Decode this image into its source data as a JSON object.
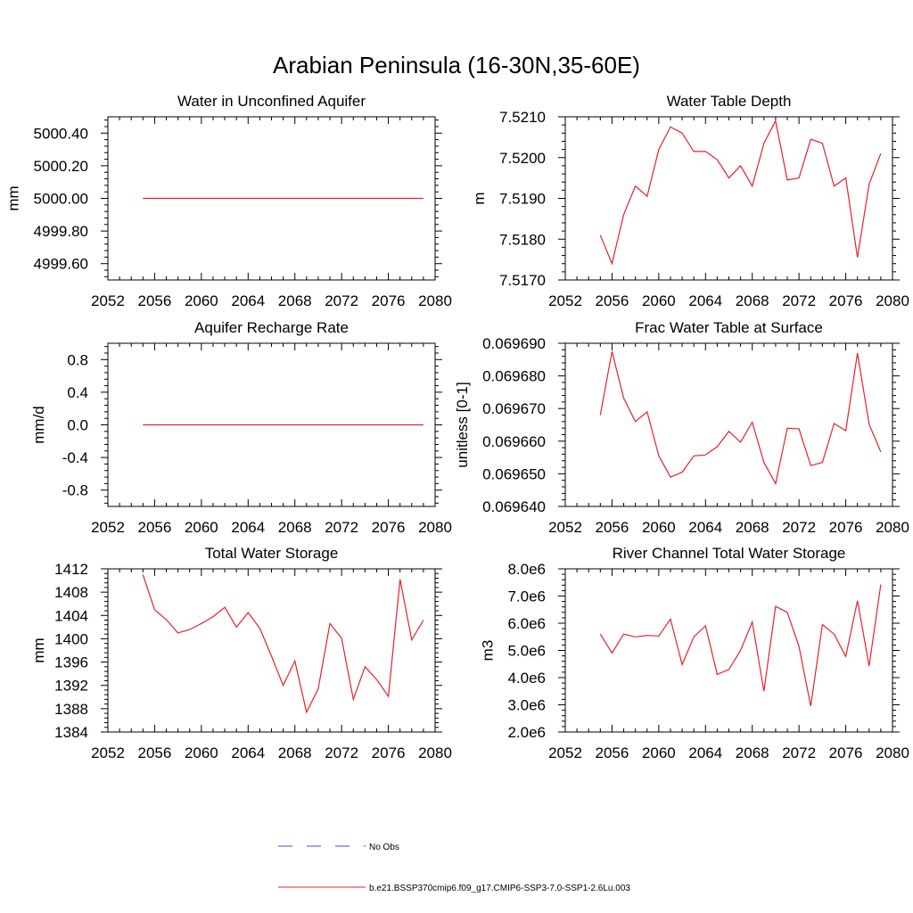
{
  "title": "Arabian Peninsula (16-30N,35-60E)",
  "colors": {
    "series": "#e8202a",
    "no_obs": "#4a4ac8",
    "axis": "#000000"
  },
  "legend": {
    "items": [
      {
        "label": "No Obs",
        "style": "dashed",
        "color": "#4a4ac8"
      },
      {
        "label": "b.e21.BSSP370cmip6.f09_g17.CMIP6-SSP3-7.0-SSP1-2.6Lu.003",
        "style": "solid",
        "color": "#e8202a"
      }
    ]
  },
  "chart_data": [
    {
      "type": "line",
      "title": "Water in Unconfined Aquifer",
      "ylabel": "mm",
      "xlim": [
        2052,
        2080
      ],
      "ylim": [
        4999.5,
        5000.5
      ],
      "xticks": [
        2052,
        2056,
        2060,
        2064,
        2068,
        2072,
        2076,
        2080
      ],
      "xtick_labels": [
        "2052",
        "2056",
        "2060",
        "2064",
        "2068",
        "2072",
        "2076",
        "2080"
      ],
      "yticks": [
        4999.6,
        4999.8,
        5000.0,
        5000.2,
        5000.4
      ],
      "ytick_labels": [
        "4999.60",
        "4999.80",
        "5000.00",
        "5000.20",
        "5000.40"
      ],
      "x": [
        2055,
        2079
      ],
      "y": [
        5000.0,
        5000.0
      ]
    },
    {
      "type": "line",
      "title": "Water Table Depth",
      "ylabel": "m",
      "xlim": [
        2052,
        2080
      ],
      "ylim": [
        7.517,
        7.521
      ],
      "xticks": [
        2052,
        2056,
        2060,
        2064,
        2068,
        2072,
        2076,
        2080
      ],
      "xtick_labels": [
        "2052",
        "2056",
        "2060",
        "2064",
        "2068",
        "2072",
        "2076",
        "2080"
      ],
      "yticks": [
        7.517,
        7.518,
        7.519,
        7.52,
        7.521
      ],
      "ytick_labels": [
        "7.5170",
        "7.5180",
        "7.5190",
        "7.5200",
        "7.5210"
      ],
      "x": [
        2055,
        2056,
        2057,
        2058,
        2059,
        2060,
        2061,
        2062,
        2063,
        2064,
        2065,
        2066,
        2067,
        2068,
        2069,
        2070,
        2071,
        2072,
        2073,
        2074,
        2075,
        2076,
        2077,
        2078,
        2079
      ],
      "y": [
        7.5181,
        7.5174,
        7.5186,
        7.5193,
        7.51905,
        7.5202,
        7.52075,
        7.5206,
        7.52015,
        7.52015,
        7.51995,
        7.5195,
        7.5198,
        7.5193,
        7.52035,
        7.5209,
        7.51945,
        7.5195,
        7.52045,
        7.52035,
        7.5193,
        7.5195,
        7.51755,
        7.51935,
        7.5201
      ]
    },
    {
      "type": "line",
      "title": "Aquifer Recharge Rate",
      "ylabel": "mm/d",
      "xlim": [
        2052,
        2080
      ],
      "ylim": [
        -1.0,
        1.0
      ],
      "xticks": [
        2052,
        2056,
        2060,
        2064,
        2068,
        2072,
        2076,
        2080
      ],
      "xtick_labels": [
        "2052",
        "2056",
        "2060",
        "2064",
        "2068",
        "2072",
        "2076",
        "2080"
      ],
      "yticks": [
        -0.8,
        -0.4,
        0.0,
        0.4,
        0.8
      ],
      "ytick_labels": [
        "-0.8",
        "-0.4",
        "0.0",
        "0.4",
        "0.8"
      ],
      "x": [
        2055,
        2079
      ],
      "y": [
        0.0,
        0.0
      ]
    },
    {
      "type": "line",
      "title": "Frac Water Table at Surface",
      "ylabel": "unitless [0-1]",
      "xlim": [
        2052,
        2080
      ],
      "ylim": [
        0.06964,
        0.06969
      ],
      "xticks": [
        2052,
        2056,
        2060,
        2064,
        2068,
        2072,
        2076,
        2080
      ],
      "xtick_labels": [
        "2052",
        "2056",
        "2060",
        "2064",
        "2068",
        "2072",
        "2076",
        "2080"
      ],
      "yticks": [
        0.06964,
        0.06965,
        0.06966,
        0.06967,
        0.06968,
        0.06969
      ],
      "ytick_labels": [
        "0.069640",
        "0.069650",
        "0.069660",
        "0.069670",
        "0.069680",
        "0.069690"
      ],
      "x": [
        2055,
        2056,
        2057,
        2058,
        2059,
        2060,
        2061,
        2062,
        2063,
        2064,
        2065,
        2066,
        2067,
        2068,
        2069,
        2070,
        2071,
        2072,
        2073,
        2074,
        2075,
        2076,
        2077,
        2078,
        2079
      ],
      "y": [
        0.069668,
        0.0696875,
        0.0696732,
        0.069666,
        0.069669,
        0.0696555,
        0.069649,
        0.0696505,
        0.0696555,
        0.0696558,
        0.0696583,
        0.069663,
        0.0696597,
        0.0696658,
        0.0696535,
        0.069647,
        0.069664,
        0.0696638,
        0.0696525,
        0.0696535,
        0.0696654,
        0.0696632,
        0.069687,
        0.0696652,
        0.0696567
      ]
    },
    {
      "type": "line",
      "title": "Total Water Storage",
      "ylabel": "mm",
      "xlim": [
        2052,
        2080
      ],
      "ylim": [
        1384,
        1412
      ],
      "xticks": [
        2052,
        2056,
        2060,
        2064,
        2068,
        2072,
        2076,
        2080
      ],
      "xtick_labels": [
        "2052",
        "2056",
        "2060",
        "2064",
        "2068",
        "2072",
        "2076",
        "2080"
      ],
      "yticks": [
        1384,
        1388,
        1392,
        1396,
        1400,
        1404,
        1408,
        1412
      ],
      "ytick_labels": [
        "1384",
        "1388",
        "1392",
        "1396",
        "1400",
        "1404",
        "1408",
        "1412"
      ],
      "x": [
        2055,
        2056,
        2057,
        2058,
        2059,
        2060,
        2061,
        2062,
        2063,
        2064,
        2065,
        2066,
        2067,
        2068,
        2069,
        2070,
        2071,
        2072,
        2073,
        2074,
        2075,
        2076,
        2077,
        2078,
        2079
      ],
      "y": [
        1411.0,
        1405.0,
        1403.3,
        1401.0,
        1401.6,
        1402.6,
        1403.8,
        1405.4,
        1402.0,
        1404.5,
        1401.8,
        1397.0,
        1392.0,
        1396.2,
        1387.4,
        1391.4,
        1402.6,
        1400.1,
        1389.6,
        1395.2,
        1393.0,
        1390.1,
        1410.2,
        1399.8,
        1403.2
      ]
    },
    {
      "type": "line",
      "title": "River Channel Total Water Storage",
      "ylabel": "m3",
      "xlim": [
        2052,
        2080
      ],
      "ylim": [
        2000000,
        8000000
      ],
      "xticks": [
        2052,
        2056,
        2060,
        2064,
        2068,
        2072,
        2076,
        2080
      ],
      "xtick_labels": [
        "2052",
        "2056",
        "2060",
        "2064",
        "2068",
        "2072",
        "2076",
        "2080"
      ],
      "yticks": [
        2000000,
        3000000,
        4000000,
        5000000,
        6000000,
        7000000,
        8000000
      ],
      "ytick_labels": [
        "2.0e6",
        "3.0e6",
        "4.0e6",
        "5.0e6",
        "6.0e6",
        "7.0e6",
        "8.0e6"
      ],
      "x": [
        2055,
        2056,
        2057,
        2058,
        2059,
        2060,
        2061,
        2062,
        2063,
        2064,
        2065,
        2066,
        2067,
        2068,
        2069,
        2070,
        2071,
        2072,
        2073,
        2074,
        2075,
        2076,
        2077,
        2078,
        2079
      ],
      "y": [
        5600000,
        4900000,
        5600000,
        5500000,
        5550000,
        5530000,
        6150000,
        4480000,
        5500000,
        5900000,
        4120000,
        4300000,
        5000000,
        6050000,
        3500000,
        6620000,
        6400000,
        5150000,
        2950000,
        5950000,
        5600000,
        4780000,
        6830000,
        4430000,
        7430000
      ]
    }
  ]
}
